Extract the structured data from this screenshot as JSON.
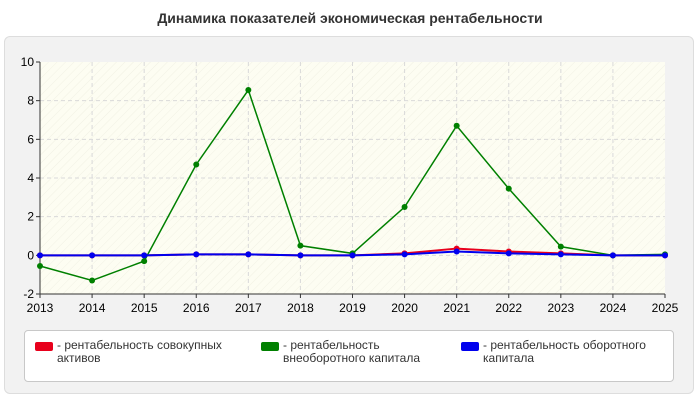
{
  "title": "Динамика показателей экономическая рентабельности",
  "colors": {
    "series1": "#e8001c",
    "series2": "#008000",
    "series3": "#0000ee",
    "plot_bg": "#fdfdf2",
    "grid": "#d9d9d9"
  },
  "legend": [
    {
      "label": "- рентабельность совокупных активов"
    },
    {
      "label": "- рентабельность внеоборотного капитала"
    },
    {
      "label": "- рентабельность оборотного капитала"
    }
  ],
  "chart_data": {
    "type": "line",
    "title": "Динамика показателей экономическая рентабельности",
    "x": [
      "2013",
      "2014",
      "2015",
      "2016",
      "2017",
      "2018",
      "2019",
      "2020",
      "2021",
      "2022",
      "2023",
      "2024",
      "2025"
    ],
    "ylim": [
      -2,
      10
    ],
    "yticks": [
      "-2",
      "0",
      "2",
      "4",
      "6",
      "8",
      "10"
    ],
    "grid": true,
    "legend_position": "bottom",
    "series": [
      {
        "name": "- рентабельность совокупных активов",
        "values": [
          0,
          0,
          0,
          0.05,
          0.05,
          0,
          0,
          0.1,
          0.35,
          0.2,
          0.1,
          0,
          0
        ]
      },
      {
        "name": "- рентабельность внеоборотного капитала",
        "values": [
          -0.55,
          -1.3,
          -0.3,
          4.7,
          8.55,
          0.5,
          0.1,
          2.5,
          6.7,
          3.45,
          0.45,
          0,
          0.05
        ]
      },
      {
        "name": "- рентабельность оборотного капитала",
        "values": [
          0,
          0,
          0,
          0.05,
          0.05,
          0,
          0,
          0.05,
          0.2,
          0.1,
          0.05,
          0,
          0
        ]
      }
    ]
  }
}
